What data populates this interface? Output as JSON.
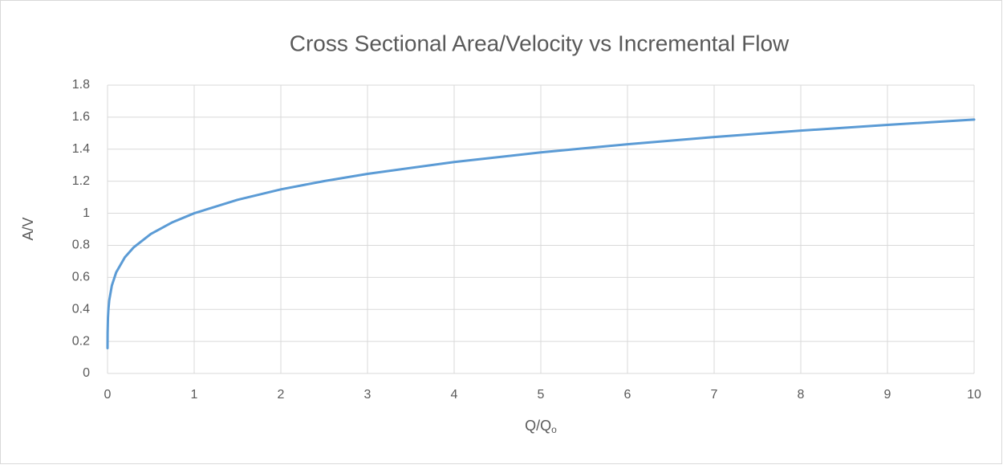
{
  "chart_data": {
    "type": "line",
    "title": "Cross Sectional Area/Velocity vs Incremental Flow",
    "x_label": "Q/Q",
    "x_label_subscript": "o",
    "y_label": "A/V",
    "x": [
      0.0001,
      0.001,
      0.005,
      0.01,
      0.02,
      0.05,
      0.1,
      0.2,
      0.3,
      0.5,
      0.75,
      1,
      1.5,
      2,
      2.5,
      3,
      4,
      5,
      6,
      7,
      8,
      9,
      10
    ],
    "values": [
      0.158,
      0.251,
      0.347,
      0.398,
      0.457,
      0.549,
      0.631,
      0.725,
      0.786,
      0.871,
      0.944,
      1,
      1.084,
      1.149,
      1.201,
      1.246,
      1.32,
      1.38,
      1.431,
      1.476,
      1.516,
      1.552,
      1.585
    ],
    "color": "#5b9bd5",
    "xlim": [
      0,
      10
    ],
    "xticks": [
      0,
      1,
      2,
      3,
      4,
      5,
      6,
      7,
      8,
      9,
      10
    ],
    "ylim": [
      0,
      1.8
    ],
    "yticks": [
      0,
      0.2,
      0.4,
      0.6,
      0.8,
      1,
      1.2,
      1.4,
      1.6,
      1.8
    ],
    "grid": true
  }
}
